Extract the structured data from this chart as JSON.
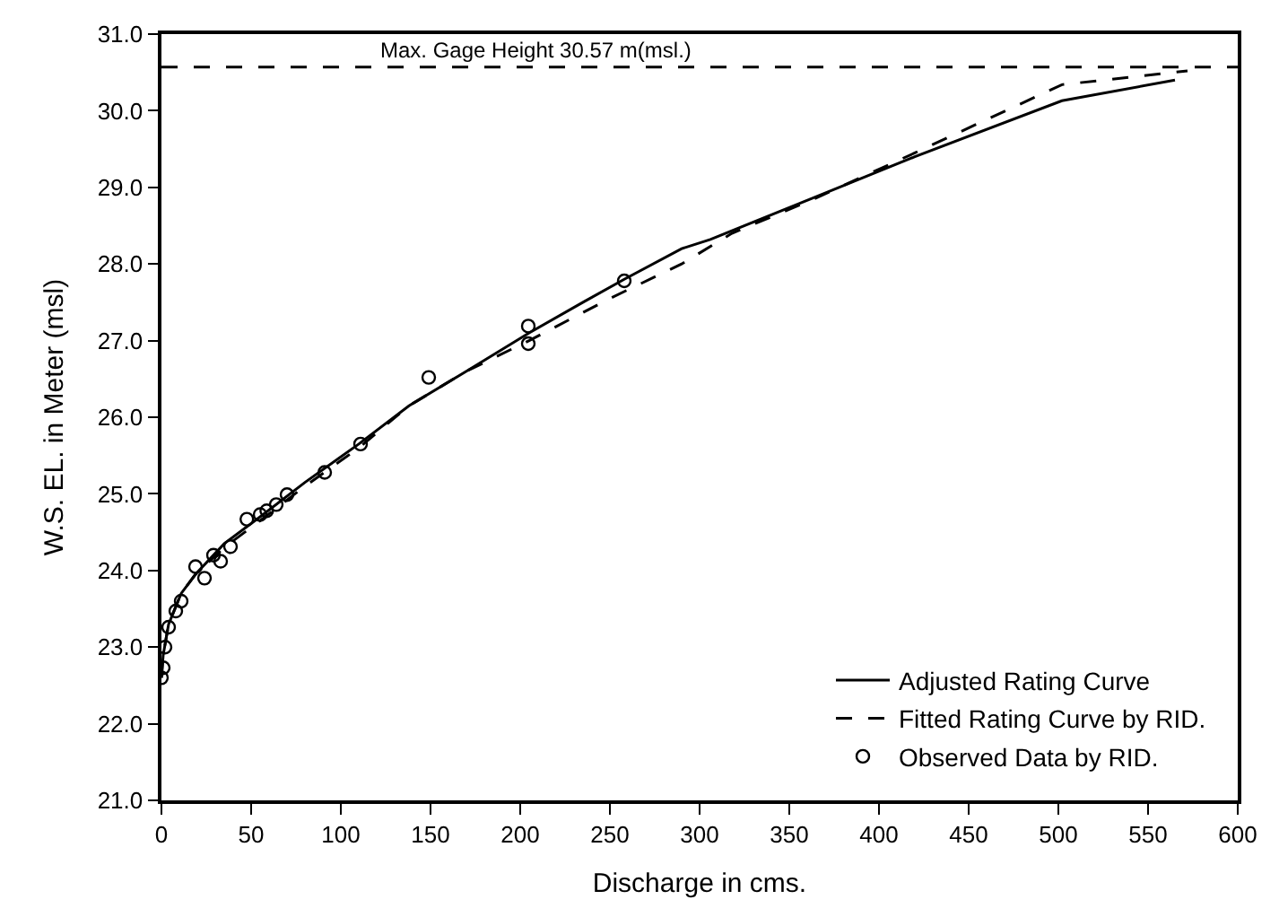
{
  "chart_data": {
    "type": "line",
    "xlabel": "Discharge in cms.",
    "ylabel": "W.S. EL. in Meter (msl)",
    "xlim": [
      0,
      600
    ],
    "xticks": [
      0,
      50,
      100,
      150,
      200,
      250,
      300,
      350,
      400,
      450,
      500,
      550,
      600
    ],
    "ylim": [
      21,
      31
    ],
    "yticks": [
      {
        "value": 21,
        "label": "21.0"
      },
      {
        "value": 22,
        "label": "22.0"
      },
      {
        "value": 23,
        "label": "23.0"
      },
      {
        "value": 24,
        "label": "24.0"
      },
      {
        "value": 25,
        "label": "25.0"
      },
      {
        "value": 26,
        "label": "26.0"
      },
      {
        "value": 27,
        "label": "27.0"
      },
      {
        "value": 28,
        "label": "28.0"
      },
      {
        "value": 29,
        "label": "29.0"
      },
      {
        "value": 30,
        "label": "30.0"
      },
      {
        "value": 31,
        "label": "31.0"
      }
    ],
    "legend": "bottom right",
    "series": [
      {
        "name": "Adjusted Rating Curve",
        "color": "#000000",
        "line_style": "solid",
        "marker": "none",
        "x": [
          0,
          1,
          4,
          11,
          19,
          35,
          55,
          80,
          110,
          138,
          170,
          205,
          235,
          258,
          290,
          306,
          362,
          420,
          502,
          565
        ],
        "values": [
          22.6,
          22.9,
          23.3,
          23.7,
          23.95,
          24.35,
          24.7,
          25.15,
          25.65,
          26.15,
          26.6,
          27.1,
          27.5,
          27.8,
          28.2,
          28.32,
          28.85,
          29.4,
          30.13,
          30.4
        ]
      },
      {
        "name": "Fitted Rating Curve by RID.",
        "color": "#000000",
        "line_style": "dashed",
        "marker": "none",
        "x": [
          0,
          1,
          4,
          11,
          19,
          35,
          55,
          80,
          110,
          138,
          170,
          205,
          250,
          290,
          318,
          364,
          420,
          502,
          572
        ],
        "values": [
          22.6,
          22.9,
          23.3,
          23.7,
          23.95,
          24.3,
          24.65,
          25.1,
          25.6,
          26.15,
          26.6,
          27.0,
          27.55,
          28.0,
          28.4,
          28.85,
          29.45,
          30.34,
          30.52
        ]
      },
      {
        "name": "Observed Data by RID.",
        "type": "scatter",
        "color": "#000000",
        "marker": "circle",
        "x": [
          0,
          1,
          2,
          4,
          8,
          11,
          24,
          19,
          33,
          29,
          38.5,
          47.6,
          55,
          58.7,
          64,
          70,
          91,
          111,
          149,
          204.5,
          204.5,
          258
        ],
        "values": [
          22.6,
          22.73,
          23.0,
          23.26,
          23.47,
          23.6,
          23.9,
          24.05,
          24.12,
          24.2,
          24.31,
          24.67,
          24.73,
          24.78,
          24.86,
          24.99,
          25.28,
          25.65,
          26.52,
          27.19,
          26.96,
          27.78
        ]
      }
    ],
    "ref_lines": [
      {
        "axis": "y",
        "value": 30.57,
        "label": "Max. Gage Height 30.57 m(msl.)",
        "line_style": "dashed",
        "color": "#000000"
      }
    ]
  }
}
